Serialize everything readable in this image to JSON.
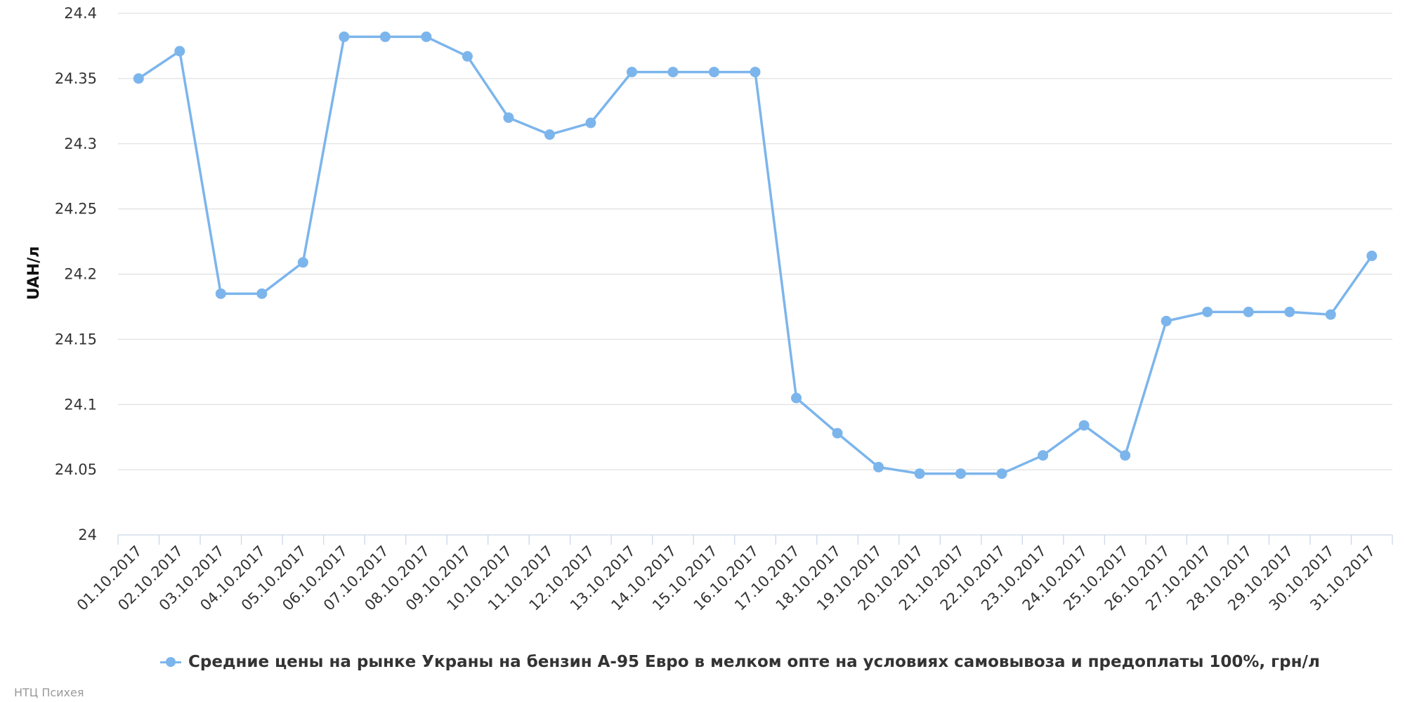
{
  "chart_data": {
    "type": "line",
    "ylabel": "UAH/л",
    "ylim": [
      24,
      24.4
    ],
    "yticks": [
      "24",
      "24.05",
      "24.1",
      "24.15",
      "24.2",
      "24.25",
      "24.3",
      "24.35",
      "24.4"
    ],
    "grid": true,
    "legend_position": "bottom",
    "categories": [
      "01.10.2017",
      "02.10.2017",
      "03.10.2017",
      "04.10.2017",
      "05.10.2017",
      "06.10.2017",
      "07.10.2017",
      "08.10.2017",
      "09.10.2017",
      "10.10.2017",
      "11.10.2017",
      "12.10.2017",
      "13.10.2017",
      "14.10.2017",
      "15.10.2017",
      "16.10.2017",
      "17.10.2017",
      "18.10.2017",
      "19.10.2017",
      "20.10.2017",
      "21.10.2017",
      "22.10.2017",
      "23.10.2017",
      "24.10.2017",
      "25.10.2017",
      "26.10.2017",
      "27.10.2017",
      "28.10.2017",
      "29.10.2017",
      "30.10.2017",
      "31.10.2017"
    ],
    "series": [
      {
        "name": "Средние цены на рынке Украны на бензин А-95 Евро в мелком опте на условиях самовывоза и предоплаты 100%, грн/л",
        "color": "#7cb5ec",
        "values": [
          24.35,
          24.371,
          24.185,
          24.185,
          24.209,
          24.382,
          24.382,
          24.382,
          24.367,
          24.32,
          24.307,
          24.316,
          24.355,
          24.355,
          24.355,
          24.355,
          24.105,
          24.078,
          24.052,
          24.047,
          24.047,
          24.047,
          24.061,
          24.084,
          24.061,
          24.164,
          24.171,
          24.171,
          24.171,
          24.169,
          24.214
        ]
      }
    ]
  },
  "credits": "НТЦ Психея"
}
